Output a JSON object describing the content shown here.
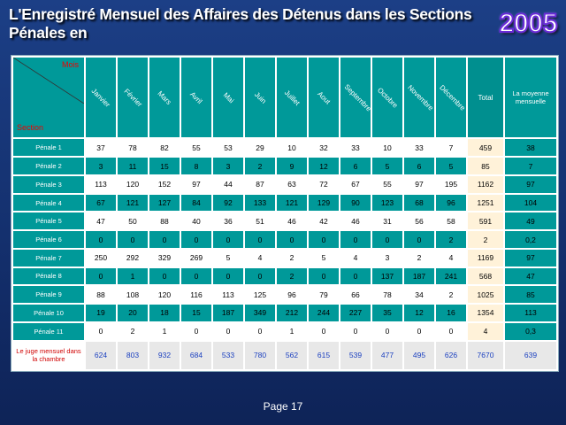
{
  "title": "L'Enregistré Mensuel des Affaires des Détenus dans les Sections Pénales en",
  "year": "2005",
  "table": {
    "corner_top": "Mois",
    "corner_bottom": "Section",
    "months": [
      "Janvier",
      "Février",
      "Mars",
      "Avril",
      "Mai",
      "Juin",
      "Juillet",
      "Aout",
      "Septembre",
      "Octobre",
      "Novembre",
      "Décembre"
    ],
    "total_label": "Total",
    "avg_label": "La moyenne mensuelle",
    "rows": [
      {
        "label": "Pénale 1",
        "values": [
          "37",
          "78",
          "82",
          "55",
          "53",
          "29",
          "10",
          "32",
          "33",
          "10",
          "33",
          "7"
        ],
        "total": "459",
        "avg": "38"
      },
      {
        "label": "Pénale 2",
        "values": [
          "3",
          "11",
          "15",
          "8",
          "3",
          "2",
          "9",
          "12",
          "6",
          "5",
          "6",
          "5"
        ],
        "total": "85",
        "avg": "7"
      },
      {
        "label": "Pénale 3",
        "values": [
          "113",
          "120",
          "152",
          "97",
          "44",
          "87",
          "63",
          "72",
          "67",
          "55",
          "97",
          "195"
        ],
        "total": "1162",
        "avg": "97"
      },
      {
        "label": "Pénale 4",
        "values": [
          "67",
          "121",
          "127",
          "84",
          "92",
          "133",
          "121",
          "129",
          "90",
          "123",
          "68",
          "96"
        ],
        "total": "1251",
        "avg": "104"
      },
      {
        "label": "Pénale 5",
        "values": [
          "47",
          "50",
          "88",
          "40",
          "36",
          "51",
          "46",
          "42",
          "46",
          "31",
          "56",
          "58"
        ],
        "total": "591",
        "avg": "49"
      },
      {
        "label": "Pénale 6",
        "values": [
          "0",
          "0",
          "0",
          "0",
          "0",
          "0",
          "0",
          "0",
          "0",
          "0",
          "0",
          "2"
        ],
        "total": "2",
        "avg": "0,2"
      },
      {
        "label": "Pénale 7",
        "values": [
          "250",
          "292",
          "329",
          "269",
          "5",
          "4",
          "2",
          "5",
          "4",
          "3",
          "2",
          "4"
        ],
        "total": "1169",
        "avg": "97"
      },
      {
        "label": "Pénale 8",
        "values": [
          "0",
          "1",
          "0",
          "0",
          "0",
          "0",
          "2",
          "0",
          "0",
          "137",
          "187",
          "241"
        ],
        "total": "568",
        "avg": "47"
      },
      {
        "label": "Pénale 9",
        "values": [
          "88",
          "108",
          "120",
          "116",
          "113",
          "125",
          "96",
          "79",
          "66",
          "78",
          "34",
          "2"
        ],
        "total": "1025",
        "avg": "85"
      },
      {
        "label": "Pénale 10",
        "values": [
          "19",
          "20",
          "18",
          "15",
          "187",
          "349",
          "212",
          "244",
          "227",
          "35",
          "12",
          "16"
        ],
        "total": "1354",
        "avg": "113"
      },
      {
        "label": "Pénale 11",
        "values": [
          "0",
          "2",
          "1",
          "0",
          "0",
          "0",
          "1",
          "0",
          "0",
          "0",
          "0",
          "0"
        ],
        "total": "4",
        "avg": "0,3"
      }
    ],
    "summary": {
      "label": "Le juge mensuel dans la chambre",
      "values": [
        "624",
        "803",
        "932",
        "684",
        "533",
        "780",
        "562",
        "615",
        "539",
        "477",
        "495",
        "626"
      ],
      "total": "7670",
      "avg": "639"
    }
  },
  "footer": "Page 17",
  "colors": {
    "background": "#1c3f86",
    "teal": "#009999",
    "total_column": "#fff2d9",
    "year_outline": "#6a2bd8",
    "summary_label": "#d00000",
    "summary_values": "#1a3fbf"
  }
}
